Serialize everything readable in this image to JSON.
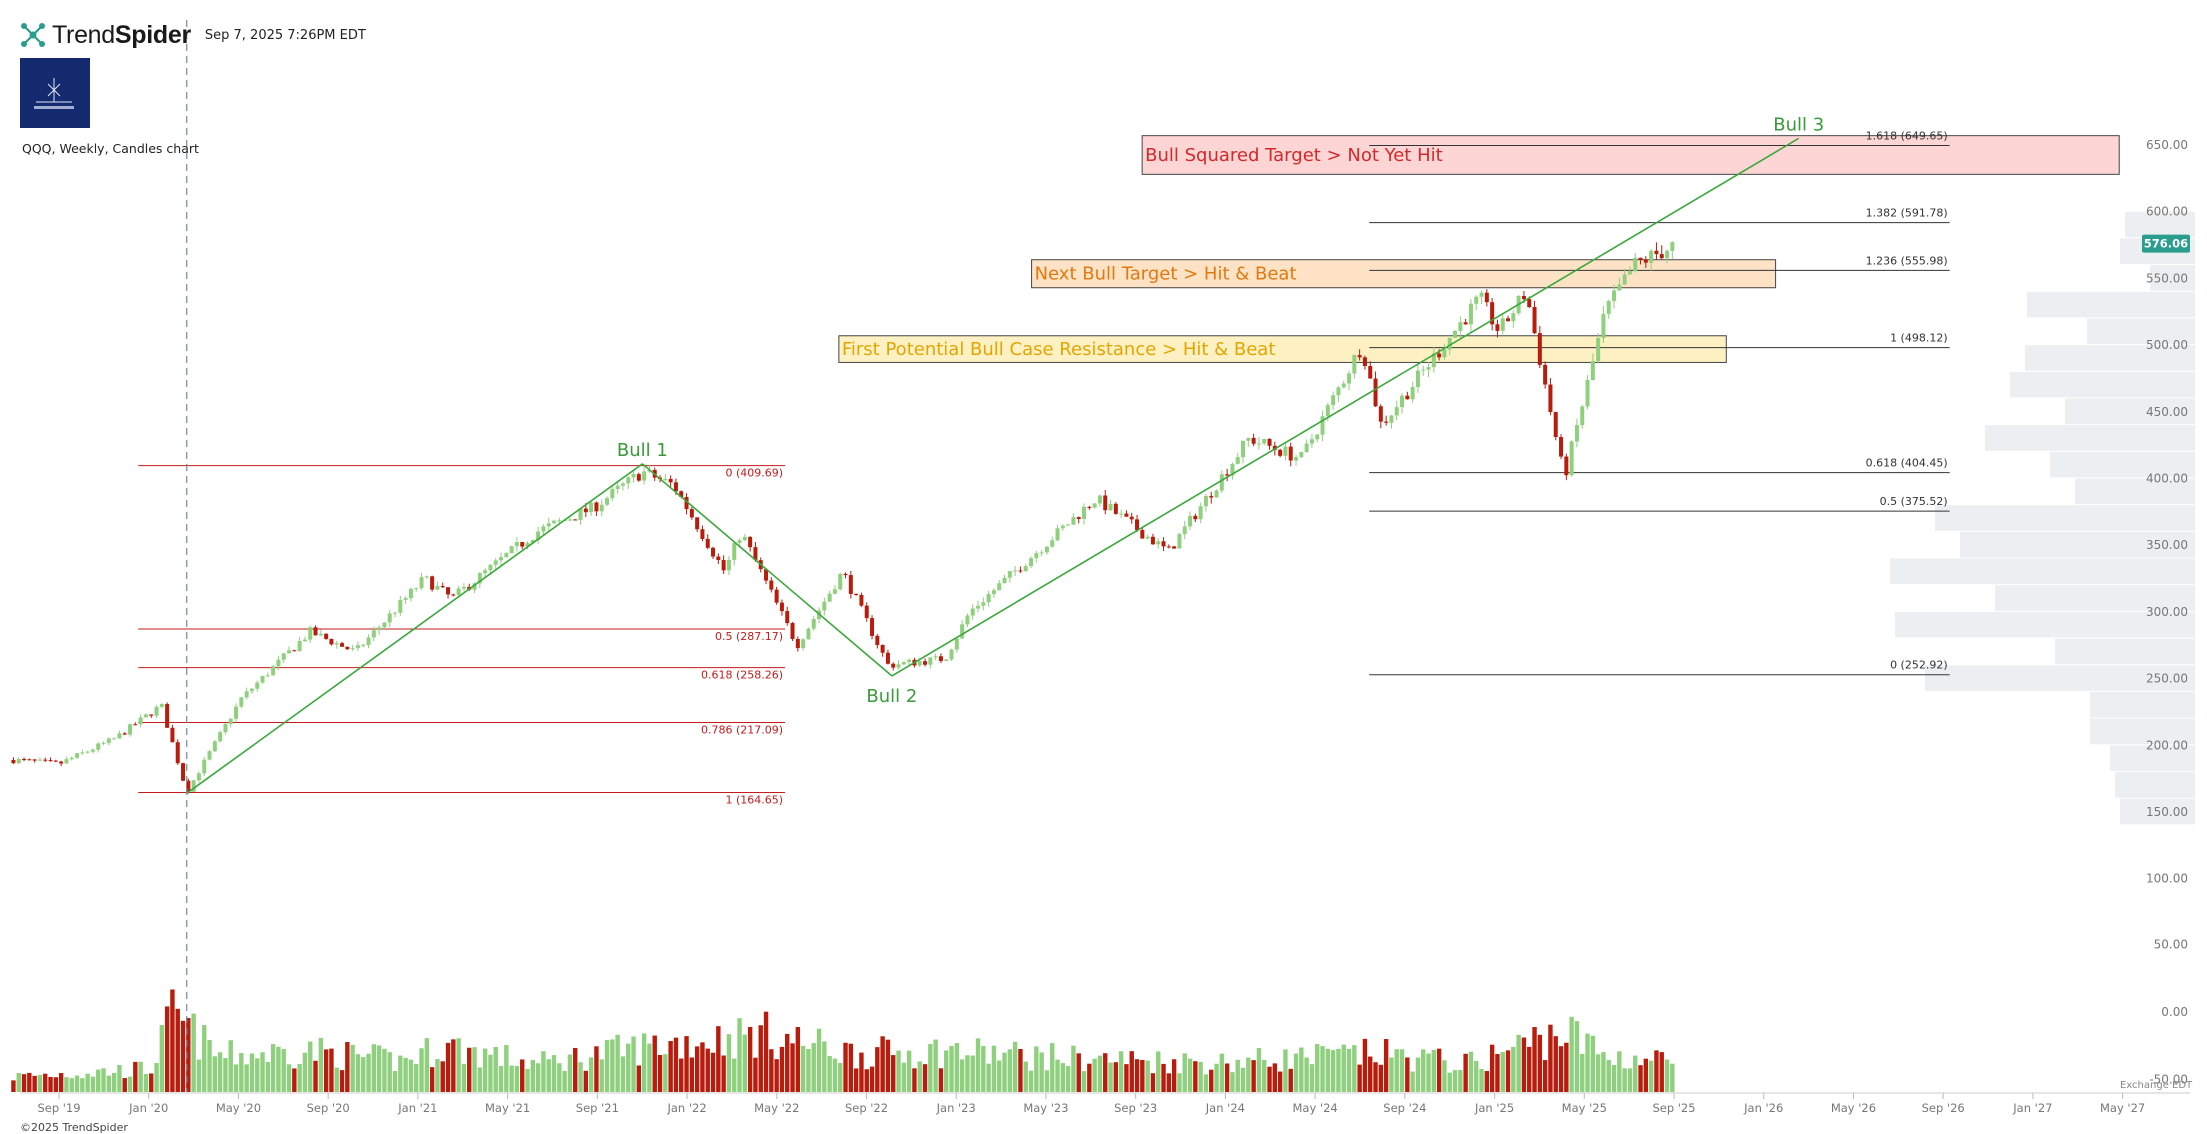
{
  "header": {
    "brand_regular": "Trend",
    "brand_bold": "Spider",
    "timestamp": "Sep 7, 2025 7:26PM EDT",
    "chart_label": "QQQ, Weekly, Candles chart",
    "copyright": "©2025 TrendSpider",
    "exchange_label": "Exchange EDT"
  },
  "colors": {
    "up": "#8fd07e",
    "down": "#b71c0c",
    "green_line": "#3aa83a",
    "red_level": "#c41b1b",
    "dark_level": "#333333",
    "price_badge": "#2a9d8f"
  },
  "chart_data": {
    "type": "candlestick",
    "symbol": "QQQ",
    "interval": "Weekly",
    "current_price": "576.06",
    "y_ticks": [
      "650.00",
      "600.00",
      "550.00",
      "500.00",
      "450.00",
      "400.00",
      "350.00",
      "300.00",
      "250.00",
      "200.00",
      "150.00",
      "100.00",
      "50.00",
      "0.00",
      "-50.00"
    ],
    "x_ticks": [
      "Sep '19",
      "Jan '20",
      "May '20",
      "Sep '20",
      "Jan '21",
      "May '21",
      "Sep '21",
      "Jan '22",
      "May '22",
      "Sep '22",
      "Jan '23",
      "May '23",
      "Sep '23",
      "Jan '24",
      "May '24",
      "Sep '24",
      "Jan '25",
      "May '25",
      "Sep '25",
      "Jan '26",
      "May '26",
      "Sep '26",
      "Jan '27",
      "May '27"
    ],
    "price_path": [
      [
        "2019-08-01",
        189
      ],
      [
        "2019-10-01",
        186
      ],
      [
        "2019-12-15",
        205
      ],
      [
        "2020-02-15",
        230
      ],
      [
        "2020-03-20",
        165
      ],
      [
        "2020-06-01",
        235
      ],
      [
        "2020-09-01",
        285
      ],
      [
        "2020-11-01",
        270
      ],
      [
        "2021-02-01",
        325
      ],
      [
        "2021-03-10",
        310
      ],
      [
        "2021-07-01",
        360
      ],
      [
        "2021-09-15",
        378
      ],
      [
        "2021-11-20",
        405
      ],
      [
        "2022-01-01",
        395
      ],
      [
        "2022-03-10",
        330
      ],
      [
        "2022-04-01",
        360
      ],
      [
        "2022-06-15",
        275
      ],
      [
        "2022-08-15",
        330
      ],
      [
        "2022-10-15",
        260
      ],
      [
        "2022-12-30",
        265
      ],
      [
        "2023-02-01",
        300
      ],
      [
        "2023-07-20",
        385
      ],
      [
        "2023-10-25",
        345
      ],
      [
        "2024-02-10",
        430
      ],
      [
        "2024-04-20",
        415
      ],
      [
        "2024-07-10",
        500
      ],
      [
        "2024-08-05",
        440
      ],
      [
        "2024-12-15",
        535
      ],
      [
        "2025-01-10",
        510
      ],
      [
        "2025-02-15",
        540
      ],
      [
        "2025-04-07",
        400
      ],
      [
        "2025-06-01",
        525
      ],
      [
        "2025-07-10",
        560
      ],
      [
        "2025-09-05",
        576
      ]
    ],
    "volume_path": [
      [
        "2019-08-01",
        12
      ],
      [
        "2020-02-01",
        18
      ],
      [
        "2020-03-01",
        60
      ],
      [
        "2020-05-01",
        28
      ],
      [
        "2020-09-01",
        32
      ],
      [
        "2021-01-01",
        24
      ],
      [
        "2021-03-01",
        36
      ],
      [
        "2021-07-01",
        22
      ],
      [
        "2021-12-01",
        36
      ],
      [
        "2022-05-01",
        45
      ],
      [
        "2022-09-01",
        30
      ],
      [
        "2023-01-01",
        32
      ],
      [
        "2023-07-01",
        26
      ],
      [
        "2024-01-01",
        23
      ],
      [
        "2024-08-01",
        30
      ],
      [
        "2024-12-01",
        22
      ],
      [
        "2025-04-07",
        48
      ],
      [
        "2025-06-01",
        28
      ],
      [
        "2025-09-05",
        24
      ]
    ],
    "zones": [
      {
        "label": "Bull Squared Target > Not Yet Hit",
        "from": "2023-09-20",
        "to": "2027-04-20",
        "low": 628,
        "high": 657,
        "fill": "#fdd5d5",
        "text_color": "#d12a2a"
      },
      {
        "label": "Next Bull Target > Hit & Beat",
        "from": "2023-04-25",
        "to": "2026-01-15",
        "low": 543,
        "high": 564,
        "fill": "#fde2c6",
        "text_color": "#e07a10"
      },
      {
        "label": "First Potential Bull Case Resistance > Hit & Beat",
        "from": "2022-08-10",
        "to": "2025-11-10",
        "low": 487,
        "high": 507,
        "fill": "#fdf1c4",
        "text_color": "#e3a500"
      }
    ],
    "fib_sets": [
      {
        "color": "#c41b1b",
        "from": "2020-01-15",
        "to": "2022-05-30",
        "levels": [
          {
            "value": 409.69,
            "label": "0 (409.69)"
          },
          {
            "value": 287.17,
            "label": "0.5 (287.17)"
          },
          {
            "value": 258.26,
            "label": "0.618 (258.26)"
          },
          {
            "value": 217.09,
            "label": "0.786 (217.09)"
          },
          {
            "value": 164.65,
            "label": "1 (164.65)"
          }
        ]
      },
      {
        "color": "#333333",
        "from": "2024-07-20",
        "to": "2026-09-05",
        "levels": [
          {
            "value": 649.65,
            "label": "1.618 (649.65)"
          },
          {
            "value": 591.78,
            "label": "1.382 (591.78)"
          },
          {
            "value": 555.98,
            "label": "1.236 (555.98)"
          },
          {
            "value": 498.12,
            "label": "1 (498.12)"
          },
          {
            "value": 404.45,
            "label": "0.618 (404.45)"
          },
          {
            "value": 375.52,
            "label": "0.5 (375.52)"
          },
          {
            "value": 252.92,
            "label": "0 (252.92)"
          }
        ]
      }
    ],
    "trend_lines": [
      {
        "from": [
          "2020-03-20",
          164
        ],
        "to": [
          "2021-11-20",
          411
        ]
      },
      {
        "from": [
          "2021-11-20",
          411
        ],
        "to": [
          "2022-10-20",
          252
        ]
      },
      {
        "from": [
          "2022-10-20",
          252
        ],
        "to": [
          "2026-02-15",
          655
        ]
      }
    ],
    "pivots": [
      {
        "label": "Bull 1",
        "date": "2021-11-20",
        "price": 411
      },
      {
        "label": "Bull 2",
        "date": "2022-10-20",
        "price": 252
      },
      {
        "label": "Bull 3",
        "date": "2026-02-15",
        "price": 655
      }
    ],
    "vertical_marker": "2020-03-20",
    "volume_profile": [
      [
        650,
        0
      ],
      [
        630,
        0
      ],
      [
        610,
        0
      ],
      [
        590,
        70
      ],
      [
        570,
        75
      ],
      [
        550,
        45
      ],
      [
        530,
        168
      ],
      [
        510,
        108
      ],
      [
        490,
        170
      ],
      [
        470,
        185
      ],
      [
        450,
        130
      ],
      [
        430,
        210
      ],
      [
        410,
        145
      ],
      [
        390,
        120
      ],
      [
        370,
        260
      ],
      [
        350,
        235
      ],
      [
        330,
        305
      ],
      [
        310,
        200
      ],
      [
        290,
        300
      ],
      [
        270,
        140
      ],
      [
        250,
        270
      ],
      [
        230,
        105
      ],
      [
        210,
        105
      ],
      [
        190,
        85
      ],
      [
        170,
        80
      ],
      [
        150,
        75
      ]
    ]
  }
}
